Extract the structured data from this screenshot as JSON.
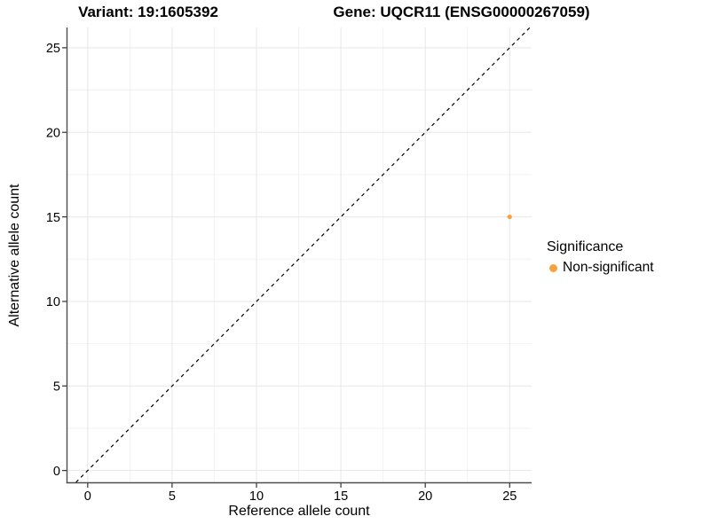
{
  "titles": {
    "variant": "Variant: 19:1605392",
    "gene": "Gene: UQCR11 (ENSG00000267059)"
  },
  "axes": {
    "x_label": "Reference allele count",
    "y_label": "Alternative allele count"
  },
  "legend": {
    "title": "Significance",
    "items": [
      {
        "label": "Non-significant",
        "color": "#F9A23C"
      }
    ]
  },
  "chart_data": {
    "type": "scatter",
    "title": "Variant: 19:1605392   Gene: UQCR11 (ENSG00000267059)",
    "xlabel": "Reference allele count",
    "ylabel": "Alternative allele count",
    "x_ticks": [
      0,
      5,
      10,
      15,
      20,
      25
    ],
    "y_ticks": [
      0,
      5,
      10,
      15,
      20,
      25
    ],
    "x_minor_ticks": [
      2.5,
      7.5,
      12.5,
      17.5,
      22.5
    ],
    "y_minor_ticks": [
      2.5,
      7.5,
      12.5,
      17.5,
      22.5
    ],
    "xlim": [
      -1.2,
      26.3
    ],
    "ylim": [
      -0.7,
      26.2
    ],
    "grid": true,
    "legend_position": "right",
    "reference_line": {
      "type": "identity",
      "equation": "y = x",
      "style": "dashed",
      "color": "#000000"
    },
    "series": [
      {
        "name": "Non-significant",
        "color": "#F9A23C",
        "points": [
          {
            "x": 25,
            "y": 15
          }
        ]
      }
    ],
    "colors": {
      "grid_major": "#E7E7E7",
      "grid_minor": "#F2F2F2",
      "axis_line": "#4D4D4D",
      "tick_mark": "#333333"
    }
  }
}
